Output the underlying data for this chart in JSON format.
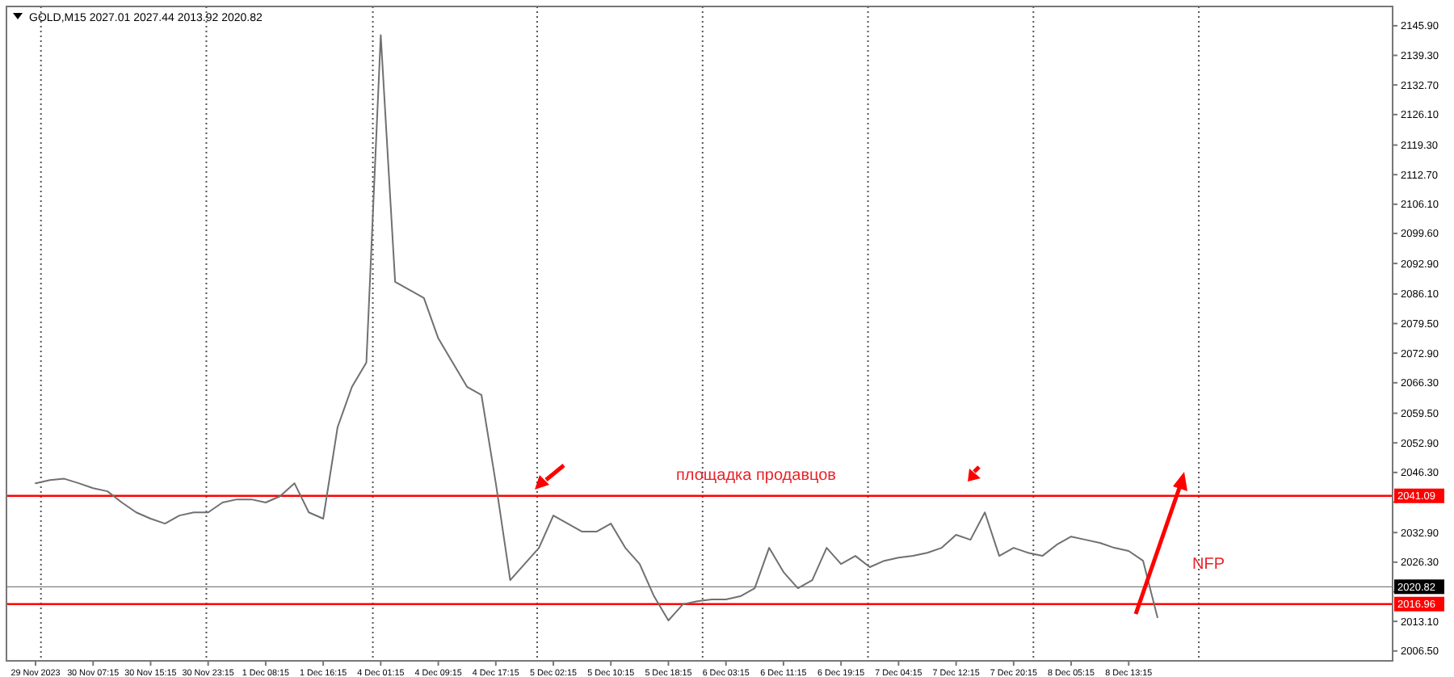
{
  "chart_data": {
    "type": "line",
    "title": "GOLD,M15  2027.01 2027.44 2013.92 2020.82",
    "categories": [
      "29 Nov 2023",
      null,
      null,
      null,
      "30 Nov 07:15",
      null,
      null,
      null,
      "30 Nov 15:15",
      null,
      null,
      null,
      "30 Nov 23:15",
      null,
      null,
      null,
      "1 Dec 08:15",
      null,
      null,
      null,
      "1 Dec 16:15",
      null,
      null,
      null,
      "4 Dec 01:15",
      null,
      null,
      null,
      "4 Dec 09:15",
      null,
      null,
      null,
      "4 Dec 17:15",
      null,
      null,
      null,
      "5 Dec 02:15",
      null,
      null,
      null,
      "5 Dec 10:15",
      null,
      null,
      null,
      "5 Dec 18:15",
      null,
      null,
      null,
      "6 Dec 03:15",
      null,
      null,
      null,
      "6 Dec 11:15",
      null,
      null,
      null,
      "6 Dec 19:15",
      null,
      null,
      null,
      "7 Dec 04:15",
      null,
      null,
      null,
      "7 Dec 12:15",
      null,
      null,
      null,
      "7 Dec 20:15",
      null,
      null,
      null,
      "8 Dec 05:15",
      null,
      null,
      null,
      "8 Dec 13:15",
      null,
      null,
      null,
      null,
      null,
      null,
      null,
      null,
      null,
      null,
      null,
      null,
      null,
      null,
      null,
      null,
      null
    ],
    "series": [
      {
        "color": "#707070",
        "values": [
          2043.9,
          2044.6,
          2044.9,
          2043.9,
          2042.8,
          2042.1,
          2039.6,
          2037.4,
          2036.0,
          2034.9,
          2036.7,
          2037.4,
          2037.4,
          2039.6,
          2040.3,
          2040.3,
          2039.6,
          2041.0,
          2043.9,
          2037.4,
          2036.0,
          2056.4,
          2065.4,
          2070.8,
          2143.8,
          2088.8,
          2087.0,
          2085.2,
          2076.2,
          2070.8,
          2065.4,
          2063.6,
          2043.9,
          2022.3,
          2025.9,
          2029.5,
          2036.7,
          2034.9,
          2033.1,
          2033.1,
          2034.9,
          2029.5,
          2025.9,
          2018.7,
          2013.3,
          2016.9,
          2017.6,
          2018.0,
          2018.0,
          2018.7,
          2020.5,
          2029.5,
          2024.1,
          2020.5,
          2022.3,
          2029.5,
          2025.9,
          2027.7,
          2025.2,
          2026.6,
          2027.3,
          2027.7,
          2028.4,
          2029.5,
          2032.4,
          2031.3,
          2037.4,
          2027.7,
          2029.5,
          2028.4,
          2027.7,
          2030.2,
          2032.0,
          2031.3,
          2030.6,
          2029.5,
          2028.8,
          2026.6,
          2014.0,
          null,
          null,
          null,
          null,
          null,
          null,
          null,
          null,
          null,
          null,
          null,
          null,
          null,
          null,
          null
        ]
      }
    ],
    "ylim": [
      2004.3,
      2150.2
    ],
    "yticks": [
      {
        "value": 2145.9,
        "label": "2145.90"
      },
      {
        "value": 2139.3,
        "label": "2139.30"
      },
      {
        "value": 2132.7,
        "label": "2132.70"
      },
      {
        "value": 2126.1,
        "label": "2126.10"
      },
      {
        "value": 2119.3,
        "label": "2119.30"
      },
      {
        "value": 2112.7,
        "label": "2112.70"
      },
      {
        "value": 2106.1,
        "label": "2106.10"
      },
      {
        "value": 2099.6,
        "label": "2099.60"
      },
      {
        "value": 2092.9,
        "label": "2092.90"
      },
      {
        "value": 2086.1,
        "label": "2086.10"
      },
      {
        "value": 2079.5,
        "label": "2079.50"
      },
      {
        "value": 2072.9,
        "label": "2072.90"
      },
      {
        "value": 2066.3,
        "label": "2066.30"
      },
      {
        "value": 2059.5,
        "label": "2059.50"
      },
      {
        "value": 2052.9,
        "label": "2052.90"
      },
      {
        "value": 2046.3,
        "label": "2046.30"
      },
      {
        "value": 2039.7,
        "label": null
      },
      {
        "value": 2032.9,
        "label": "2032.90"
      },
      {
        "value": 2026.3,
        "label": "2026.30"
      },
      {
        "value": 2019.7,
        "label": null
      },
      {
        "value": 2013.1,
        "label": "2013.10"
      },
      {
        "value": 2006.5,
        "label": "2006.50"
      }
    ],
    "ref_lines": [
      {
        "axis": "y",
        "value": 2041.09,
        "label": "2041.09",
        "color": "#ff0000"
      },
      {
        "axis": "y",
        "value": 2020.82,
        "label": "2020.82",
        "color": "#000000"
      },
      {
        "axis": "y",
        "value": 2016.96,
        "label": "2016.96",
        "color": "#ff0000"
      }
    ],
    "annotations": [
      "площадка продавцов",
      "NFP"
    ],
    "line_style": "solid",
    "marker": "none",
    "grid": false
  }
}
